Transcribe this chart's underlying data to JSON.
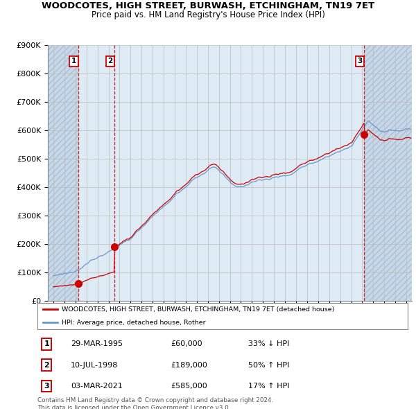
{
  "title": "WOODCOTES, HIGH STREET, BURWASH, ETCHINGHAM, TN19 7ET",
  "subtitle": "Price paid vs. HM Land Registry's House Price Index (HPI)",
  "hpi_label": "HPI: Average price, detached house, Rother",
  "price_label": "WOODCOTES, HIGH STREET, BURWASH, ETCHINGHAM, TN19 7ET (detached house)",
  "sale_annotations": [
    {
      "num": "1",
      "date_str": "29-MAR-1995",
      "price_str": "£60,000",
      "hpi_str": "33% ↓ HPI"
    },
    {
      "num": "2",
      "date_str": "10-JUL-1998",
      "price_str": "£189,000",
      "hpi_str": "50% ↑ HPI"
    },
    {
      "num": "3",
      "date_str": "03-MAR-2021",
      "price_str": "£585,000",
      "hpi_str": "17% ↑ HPI"
    }
  ],
  "sale_dates": [
    1995.24,
    1998.53,
    2021.17
  ],
  "sale_prices": [
    60000,
    189000,
    585000
  ],
  "ylim": [
    0,
    900000
  ],
  "yticks": [
    0,
    100000,
    200000,
    300000,
    400000,
    500000,
    600000,
    700000,
    800000,
    900000
  ],
  "ytick_labels": [
    "£0",
    "£100K",
    "£200K",
    "£300K",
    "£400K",
    "£500K",
    "£600K",
    "£700K",
    "£800K",
    "£900K"
  ],
  "xlim": [
    1992.5,
    2025.5
  ],
  "xticks": [
    1993,
    1994,
    1995,
    1996,
    1997,
    1998,
    1999,
    2000,
    2001,
    2002,
    2003,
    2004,
    2005,
    2006,
    2007,
    2008,
    2009,
    2010,
    2011,
    2012,
    2013,
    2014,
    2015,
    2016,
    2017,
    2018,
    2019,
    2020,
    2021,
    2022,
    2023,
    2024,
    2025
  ],
  "price_color": "#cc0000",
  "hpi_color": "#6699cc",
  "hatch_color": "#c8d8e8",
  "solid_bg_color": "#deeaf4",
  "footer_text": "Contains HM Land Registry data © Crown copyright and database right 2024.\nThis data is licensed under the Open Government Licence v3.0."
}
